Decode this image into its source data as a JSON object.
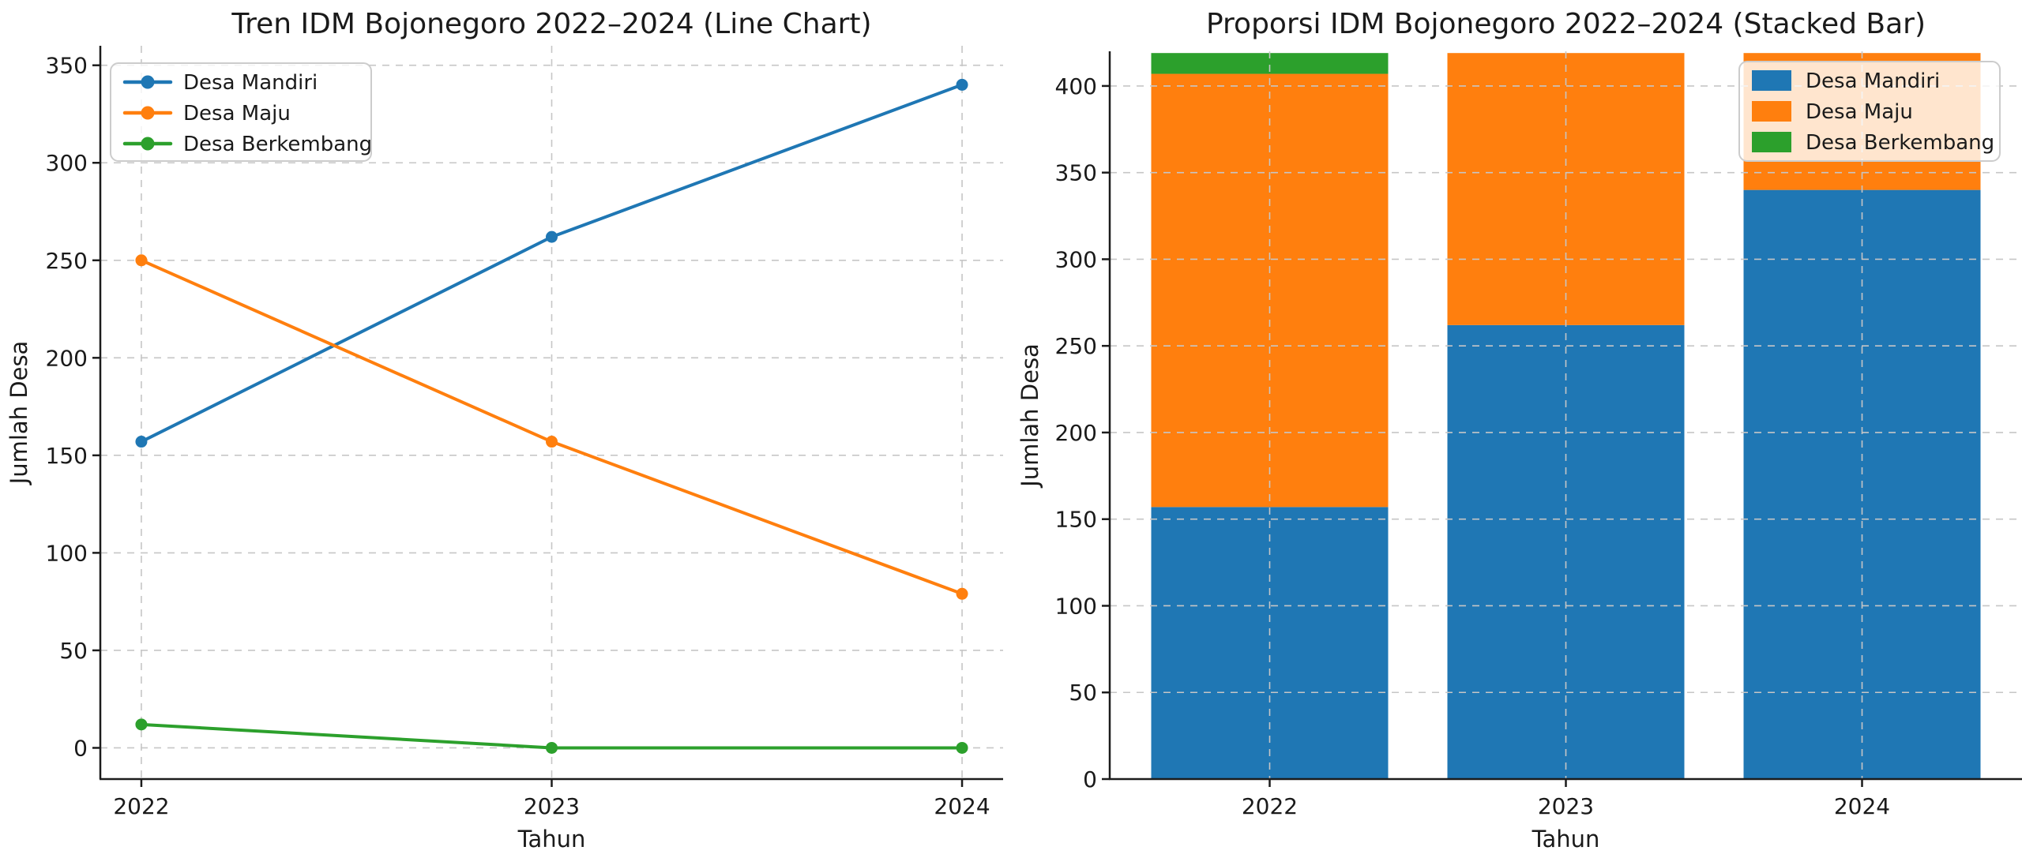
{
  "figure": {
    "background": "#ffffff",
    "text_color": "#1a1a1a",
    "grid_color": "#c6c6c6",
    "spine_color": "#1c1c1c",
    "legend_border_color": "#cccccc",
    "legend_fill": "rgba(255,255,255,0.8)"
  },
  "chart_data": [
    {
      "type": "line",
      "title": "Tren IDM Bojonegoro 2022–2024 (Line Chart)",
      "xlabel": "Tahun",
      "ylabel": "Jumlah Desa",
      "categories": [
        "2022",
        "2023",
        "2024"
      ],
      "series": [
        {
          "name": "Desa Mandiri",
          "color": "#1f77b4",
          "values": [
            157,
            262,
            340
          ]
        },
        {
          "name": "Desa Maju",
          "color": "#ff7f0e",
          "values": [
            250,
            157,
            79
          ]
        },
        {
          "name": "Desa Berkembang",
          "color": "#2ca02c",
          "values": [
            12,
            0,
            0
          ]
        }
      ],
      "yticks": [
        0,
        50,
        100,
        150,
        200,
        250,
        300,
        350
      ],
      "ylim": [
        -16,
        360
      ],
      "legend_position": "upper-left",
      "grid": true,
      "marker": "circle"
    },
    {
      "type": "bar",
      "stacked": true,
      "title": "Proporsi IDM Bojonegoro 2022–2024 (Stacked Bar)",
      "xlabel": "Tahun",
      "ylabel": "Jumlah Desa",
      "categories": [
        "2022",
        "2023",
        "2024"
      ],
      "series": [
        {
          "name": "Desa Mandiri",
          "color": "#1f77b4",
          "values": [
            157,
            262,
            340
          ]
        },
        {
          "name": "Desa Maju",
          "color": "#ff7f0e",
          "values": [
            250,
            157,
            79
          ]
        },
        {
          "name": "Desa Berkembang",
          "color": "#2ca02c",
          "values": [
            12,
            0,
            0
          ]
        }
      ],
      "yticks": [
        0,
        50,
        100,
        150,
        200,
        250,
        300,
        350,
        400
      ],
      "ylim": [
        0,
        420
      ],
      "legend_position": "upper-right",
      "grid": true
    }
  ]
}
